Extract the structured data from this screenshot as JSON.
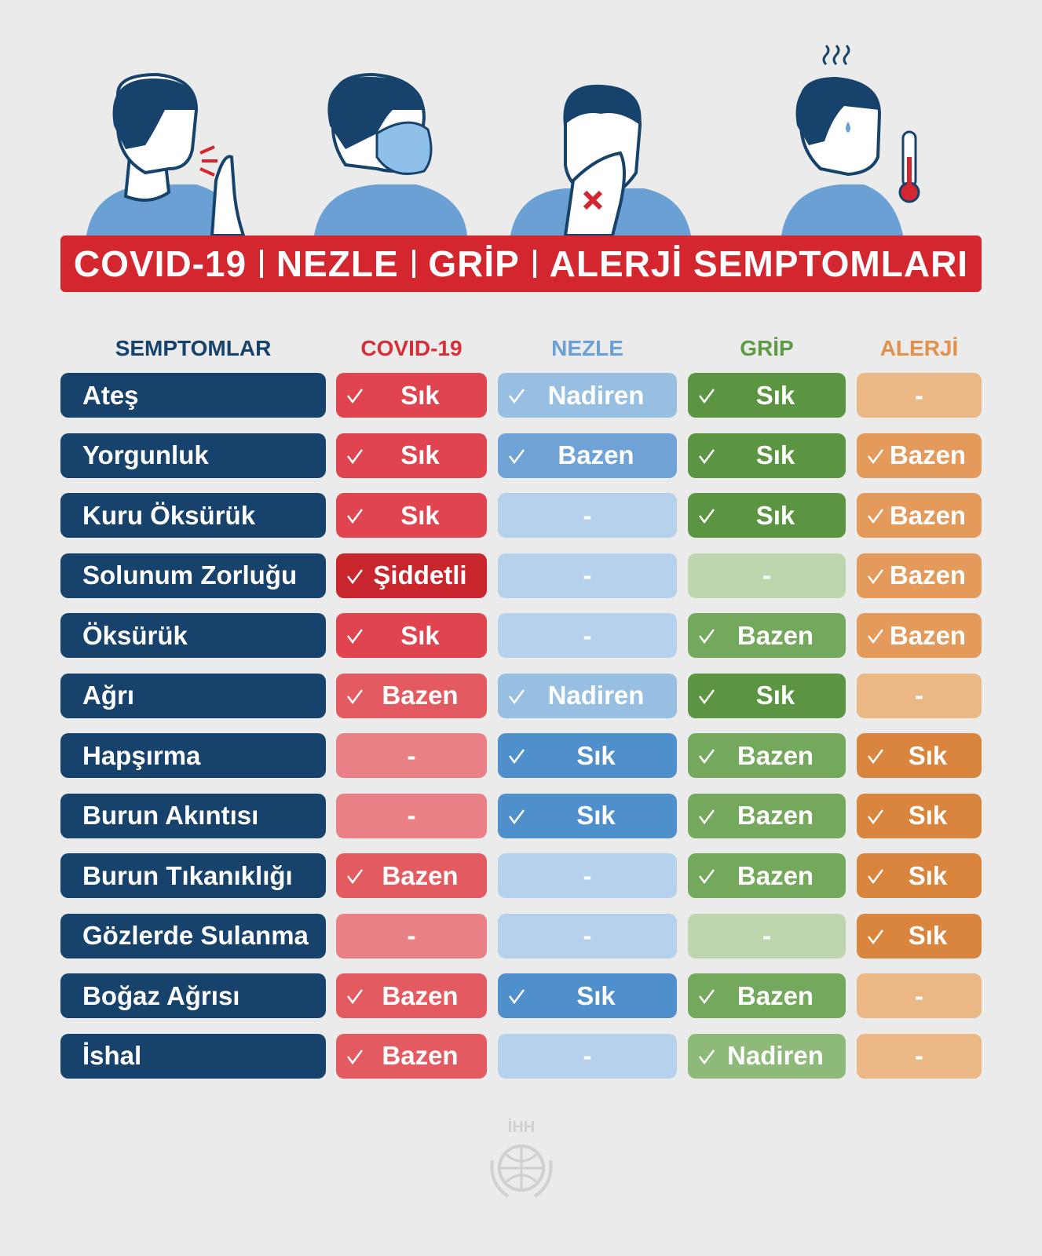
{
  "header": {
    "title_parts": [
      "COVID-19",
      "NEZLE",
      "GRİP",
      "ALERJİ SEMPTOMLARI"
    ]
  },
  "table": {
    "columns": [
      {
        "label": "SEMPTOMLAR",
        "color": "#17426b"
      },
      {
        "label": "COVID-19",
        "color": "#d5303a"
      },
      {
        "label": "NEZLE",
        "color": "#6aa0d4"
      },
      {
        "label": "GRİP",
        "color": "#5f9a45"
      },
      {
        "label": "ALERJİ",
        "color": "#e0914c"
      }
    ],
    "rows": [
      {
        "label": "Ateş",
        "cells": [
          {
            "text": "Sık",
            "check": true,
            "color": "#e0454f"
          },
          {
            "text": "Nadiren",
            "check": true,
            "color": "#97bfe2"
          },
          {
            "text": "Sık",
            "check": true,
            "color": "#5b9541"
          },
          {
            "text": "-",
            "check": false,
            "color": "#ebb785"
          }
        ]
      },
      {
        "label": "Yorgunluk",
        "cells": [
          {
            "text": "Sık",
            "check": true,
            "color": "#e0454f"
          },
          {
            "text": "Bazen",
            "check": true,
            "color": "#6fa3d6"
          },
          {
            "text": "Sık",
            "check": true,
            "color": "#5b9541"
          },
          {
            "text": "Bazen",
            "check": true,
            "color": "#e39a5a"
          }
        ]
      },
      {
        "label": "Kuru Öksürük",
        "cells": [
          {
            "text": "Sık",
            "check": true,
            "color": "#e0454f"
          },
          {
            "text": "-",
            "check": false,
            "color": "#b5d1ec"
          },
          {
            "text": "Sık",
            "check": true,
            "color": "#5b9541"
          },
          {
            "text": "Bazen",
            "check": true,
            "color": "#e39a5a"
          }
        ]
      },
      {
        "label": "Solunum Zorluğu",
        "cells": [
          {
            "text": "Şiddetli",
            "check": true,
            "color": "#c8252c"
          },
          {
            "text": "-",
            "check": false,
            "color": "#b5d1ec"
          },
          {
            "text": "-",
            "check": false,
            "color": "#bdd6ae"
          },
          {
            "text": "Bazen",
            "check": true,
            "color": "#e39a5a"
          }
        ]
      },
      {
        "label": "Öksürük",
        "cells": [
          {
            "text": "Sık",
            "check": true,
            "color": "#e0454f"
          },
          {
            "text": "-",
            "check": false,
            "color": "#b5d1ec"
          },
          {
            "text": "Bazen",
            "check": true,
            "color": "#74a85c"
          },
          {
            "text": "Bazen",
            "check": true,
            "color": "#e39a5a"
          }
        ]
      },
      {
        "label": "Ağrı",
        "cells": [
          {
            "text": "Bazen",
            "check": true,
            "color": "#e35a60"
          },
          {
            "text": "Nadiren",
            "check": true,
            "color": "#97bfe2"
          },
          {
            "text": "Sık",
            "check": true,
            "color": "#5b9541"
          },
          {
            "text": "-",
            "check": false,
            "color": "#ebb785"
          }
        ]
      },
      {
        "label": "Hapşırma",
        "cells": [
          {
            "text": "-",
            "check": false,
            "color": "#e88085"
          },
          {
            "text": "Sık",
            "check": true,
            "color": "#4f8fcc"
          },
          {
            "text": "Bazen",
            "check": true,
            "color": "#74a85c"
          },
          {
            "text": "Sık",
            "check": true,
            "color": "#d9853e"
          }
        ]
      },
      {
        "label": "Burun Akıntısı",
        "cells": [
          {
            "text": "-",
            "check": false,
            "color": "#e88085"
          },
          {
            "text": "Sık",
            "check": true,
            "color": "#4f8fcc"
          },
          {
            "text": "Bazen",
            "check": true,
            "color": "#74a85c"
          },
          {
            "text": "Sık",
            "check": true,
            "color": "#d9853e"
          }
        ]
      },
      {
        "label": "Burun Tıkanıklığı",
        "cells": [
          {
            "text": "Bazen",
            "check": true,
            "color": "#e35a60"
          },
          {
            "text": "-",
            "check": false,
            "color": "#b5d1ec"
          },
          {
            "text": "Bazen",
            "check": true,
            "color": "#74a85c"
          },
          {
            "text": "Sık",
            "check": true,
            "color": "#d9853e"
          }
        ]
      },
      {
        "label": "Gözlerde Sulanma",
        "cells": [
          {
            "text": "-",
            "check": false,
            "color": "#e88085"
          },
          {
            "text": "-",
            "check": false,
            "color": "#b5d1ec"
          },
          {
            "text": "-",
            "check": false,
            "color": "#bdd6ae"
          },
          {
            "text": "Sık",
            "check": true,
            "color": "#d9853e"
          }
        ]
      },
      {
        "label": "Boğaz Ağrısı",
        "cells": [
          {
            "text": "Bazen",
            "check": true,
            "color": "#e35a60"
          },
          {
            "text": "Sık",
            "check": true,
            "color": "#4f8fcc"
          },
          {
            "text": "Bazen",
            "check": true,
            "color": "#74a85c"
          },
          {
            "text": "-",
            "check": false,
            "color": "#ebb785"
          }
        ]
      },
      {
        "label": "İshal",
        "cells": [
          {
            "text": "Bazen",
            "check": true,
            "color": "#e35a60"
          },
          {
            "text": "-",
            "check": false,
            "color": "#b5d1ec"
          },
          {
            "text": "Nadiren",
            "check": true,
            "color": "#8dba78"
          },
          {
            "text": "-",
            "check": false,
            "color": "#ebb785"
          }
        ]
      }
    ]
  },
  "footer": {
    "logo": "İHH"
  }
}
